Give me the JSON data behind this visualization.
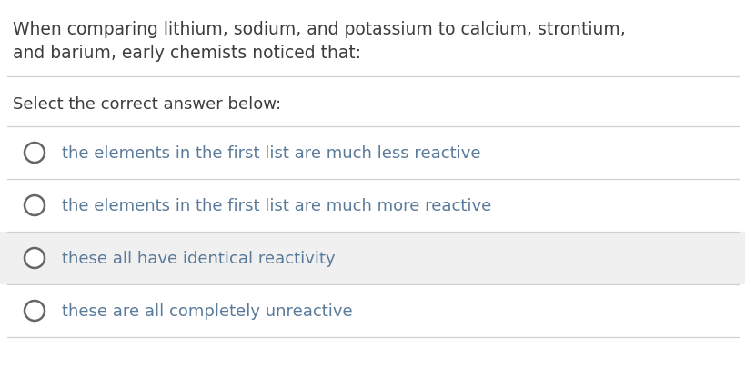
{
  "background_color": "#ffffff",
  "question_text_line1": "When comparing lithium, sodium, and potassium to calcium, strontium,",
  "question_text_line2": "and barium, early chemists noticed that:",
  "question_text_color": "#3d3d3d",
  "prompt_text": "Select the correct answer below:",
  "prompt_text_color": "#3d3d3d",
  "options": [
    "the elements in the first list are much less reactive",
    "the elements in the first list are much more reactive",
    "these all have identical reactivity",
    "these are all completely unreactive"
  ],
  "option_text_color": "#5a7a9a",
  "circle_edge_color": "#666666",
  "circle_face_color": "#ffffff",
  "separator_color": "#d0d0d0",
  "alt_row_color": "#f0f0f0",
  "font_size_question": 13.5,
  "font_size_prompt": 13.0,
  "font_size_options": 13.0,
  "fig_width": 8.2,
  "fig_height": 4.27,
  "dpi": 100
}
